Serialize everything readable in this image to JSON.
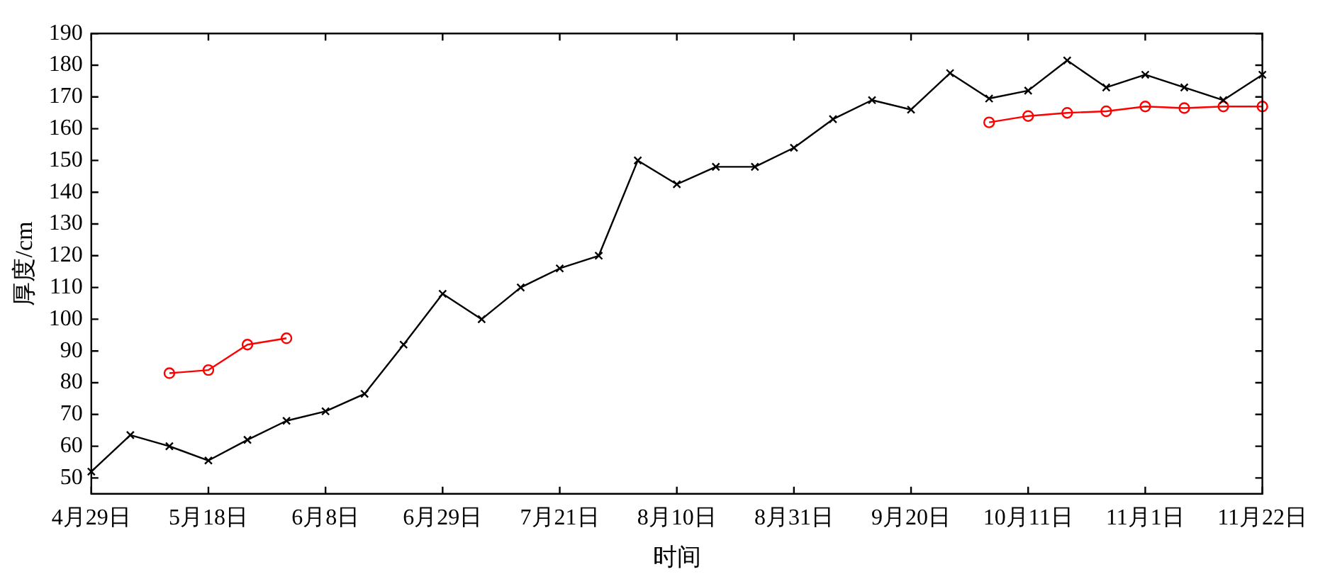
{
  "chart_data": {
    "type": "line",
    "xlabel": "时间",
    "ylabel": "厚度/cm",
    "categories": [
      "4月29日",
      null,
      null,
      "5月18日",
      null,
      null,
      "6月8日",
      null,
      null,
      "6月29日",
      null,
      null,
      "7月21日",
      null,
      null,
      "8月10日",
      null,
      null,
      "8月31日",
      null,
      null,
      "9月20日",
      null,
      null,
      "10月11日",
      null,
      null,
      "11月1日",
      null,
      null,
      "11月22日"
    ],
    "series": [
      {
        "color": "#000000",
        "marker": "cross",
        "values": [
          52,
          63.5,
          60,
          55.5,
          62,
          68,
          71,
          76.5,
          92,
          108,
          100,
          110,
          116,
          120,
          150,
          142.5,
          148,
          148,
          154,
          163,
          169,
          166,
          177.5,
          169.5,
          172,
          181.5,
          173,
          177,
          173,
          169,
          177
        ]
      },
      {
        "color": "#ff0000",
        "marker": "circle",
        "values": [
          null,
          null,
          83,
          84,
          92,
          94,
          null,
          null,
          null,
          null,
          null,
          null,
          null,
          null,
          null,
          null,
          null,
          null,
          null,
          null,
          null,
          null,
          null,
          162,
          164,
          165,
          165.5,
          167,
          166.5,
          167,
          167
        ]
      }
    ],
    "ylim": [
      45,
      190
    ],
    "yticks": [
      50,
      60,
      70,
      80,
      90,
      100,
      110,
      120,
      130,
      140,
      150,
      160,
      170,
      180,
      190
    ],
    "grid": false,
    "legend": false
  }
}
